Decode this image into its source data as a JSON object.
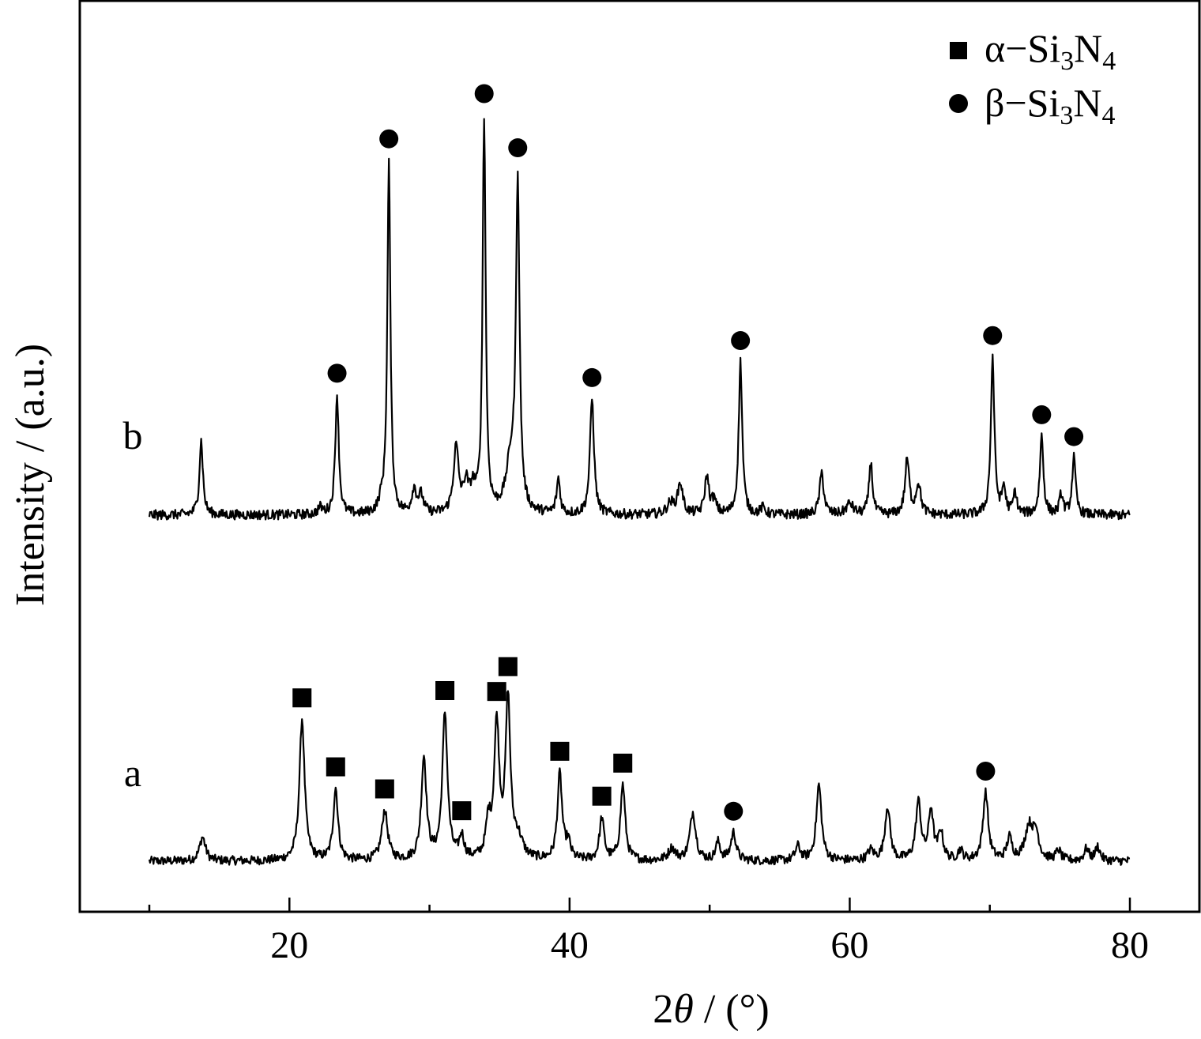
{
  "chart_data": {
    "type": "line",
    "xlabel": "2θ / (°)",
    "xlabel_parts": {
      "italic": "θ",
      "prefix": "2",
      "suffix": " / (°)"
    },
    "ylabel": "Intensity / (a.u.)",
    "xlim": [
      5,
      85
    ],
    "x_ticks": [
      10,
      20,
      30,
      40,
      50,
      60,
      70,
      80
    ],
    "x_tick_labels": [
      "20",
      "40",
      "60",
      "80"
    ],
    "x_tick_label_values": [
      20,
      40,
      60,
      80
    ],
    "y_ticks_shown": false,
    "grid": false,
    "legend_position": "top-right",
    "legend": [
      {
        "marker": "square",
        "base": "α−Si",
        "sub1": "3",
        "mid": "N",
        "sub2": "4",
        "text": "α−Si3N4"
      },
      {
        "marker": "circle",
        "base": "β−Si",
        "sub1": "3",
        "mid": "N",
        "sub2": "4",
        "text": "β−Si3N4"
      }
    ],
    "series": [
      {
        "name": "a",
        "baseline": 0.0,
        "peaks": [
          [
            13.8,
            0.12,
            0.25
          ],
          [
            20.9,
            0.71,
            0.22
          ],
          [
            23.3,
            0.36,
            0.2
          ],
          [
            26.8,
            0.25,
            0.25
          ],
          [
            29.6,
            0.51,
            0.22
          ],
          [
            31.1,
            0.73,
            0.22
          ],
          [
            32.3,
            0.11,
            0.2
          ],
          [
            34.2,
            0.17,
            0.2
          ],
          [
            34.8,
            0.67,
            0.22
          ],
          [
            35.6,
            0.79,
            0.2
          ],
          [
            36.3,
            0.1,
            0.4
          ],
          [
            39.3,
            0.43,
            0.2
          ],
          [
            39.9,
            0.08,
            0.2
          ],
          [
            42.3,
            0.21,
            0.2
          ],
          [
            43.8,
            0.38,
            0.2
          ],
          [
            47.3,
            0.06,
            0.3
          ],
          [
            48.8,
            0.24,
            0.25
          ],
          [
            50.6,
            0.09,
            0.2
          ],
          [
            51.7,
            0.14,
            0.22
          ],
          [
            56.3,
            0.07,
            0.22
          ],
          [
            57.8,
            0.38,
            0.22
          ],
          [
            61.5,
            0.05,
            0.25
          ],
          [
            62.7,
            0.27,
            0.22
          ],
          [
            64.9,
            0.29,
            0.22
          ],
          [
            65.8,
            0.25,
            0.2
          ],
          [
            66.5,
            0.14,
            0.2
          ],
          [
            67.9,
            0.05,
            0.2
          ],
          [
            69.7,
            0.34,
            0.22
          ],
          [
            71.4,
            0.11,
            0.22
          ],
          [
            72.8,
            0.17,
            0.35
          ],
          [
            73.3,
            0.12,
            0.25
          ],
          [
            74.9,
            0.05,
            0.2
          ],
          [
            76.9,
            0.06,
            0.2
          ],
          [
            77.7,
            0.07,
            0.2
          ]
        ]
      },
      {
        "name": "b",
        "baseline": 0.0,
        "peaks": [
          [
            13.7,
            0.34,
            0.15
          ],
          [
            22.2,
            0.03,
            0.2
          ],
          [
            23.4,
            0.55,
            0.15
          ],
          [
            26.6,
            0.05,
            0.25
          ],
          [
            27.1,
            1.61,
            0.13
          ],
          [
            28.9,
            0.11,
            0.2
          ],
          [
            29.4,
            0.08,
            0.2
          ],
          [
            31.9,
            0.3,
            0.22
          ],
          [
            32.6,
            0.12,
            0.2
          ],
          [
            33.1,
            0.1,
            0.25
          ],
          [
            33.9,
            1.8,
            0.13
          ],
          [
            35.8,
            0.22,
            0.4
          ],
          [
            36.3,
            1.49,
            0.15
          ],
          [
            39.2,
            0.16,
            0.15
          ],
          [
            41.6,
            0.53,
            0.17
          ],
          [
            47.2,
            0.05,
            0.3
          ],
          [
            47.9,
            0.14,
            0.22
          ],
          [
            49.8,
            0.17,
            0.18
          ],
          [
            50.3,
            0.06,
            0.2
          ],
          [
            52.2,
            0.7,
            0.15
          ],
          [
            53.8,
            0.03,
            0.2
          ],
          [
            58.0,
            0.19,
            0.18
          ],
          [
            60.0,
            0.05,
            0.3
          ],
          [
            61.5,
            0.24,
            0.15
          ],
          [
            64.1,
            0.25,
            0.18
          ],
          [
            64.9,
            0.14,
            0.2
          ],
          [
            70.2,
            0.72,
            0.15
          ],
          [
            71.0,
            0.12,
            0.15
          ],
          [
            71.8,
            0.1,
            0.15
          ],
          [
            73.7,
            0.36,
            0.15
          ],
          [
            75.1,
            0.09,
            0.15
          ],
          [
            76.0,
            0.26,
            0.15
          ]
        ]
      }
    ],
    "markers": [
      {
        "series": "a",
        "symbol": "square",
        "x": 20.9
      },
      {
        "series": "a",
        "symbol": "square",
        "x": 23.3
      },
      {
        "series": "a",
        "symbol": "square",
        "x": 26.8
      },
      {
        "series": "a",
        "symbol": "square",
        "x": 31.1
      },
      {
        "series": "a",
        "symbol": "square",
        "x": 32.3
      },
      {
        "series": "a",
        "symbol": "square",
        "x": 34.8
      },
      {
        "series": "a",
        "symbol": "square",
        "x": 35.6
      },
      {
        "series": "a",
        "symbol": "square",
        "x": 39.3
      },
      {
        "series": "a",
        "symbol": "square",
        "x": 42.3
      },
      {
        "series": "a",
        "symbol": "square",
        "x": 43.8
      },
      {
        "series": "a",
        "symbol": "circle",
        "x": 51.7
      },
      {
        "series": "a",
        "symbol": "circle",
        "x": 69.7
      },
      {
        "series": "b",
        "symbol": "circle",
        "x": 23.4
      },
      {
        "series": "b",
        "symbol": "circle",
        "x": 27.1
      },
      {
        "series": "b",
        "symbol": "circle",
        "x": 33.9
      },
      {
        "series": "b",
        "symbol": "circle",
        "x": 36.3
      },
      {
        "series": "b",
        "symbol": "circle",
        "x": 41.6
      },
      {
        "series": "b",
        "symbol": "circle",
        "x": 52.2
      },
      {
        "series": "b",
        "symbol": "circle",
        "x": 70.2
      },
      {
        "series": "b",
        "symbol": "circle",
        "x": 73.7
      },
      {
        "series": "b",
        "symbol": "circle",
        "x": 76.0
      }
    ]
  }
}
